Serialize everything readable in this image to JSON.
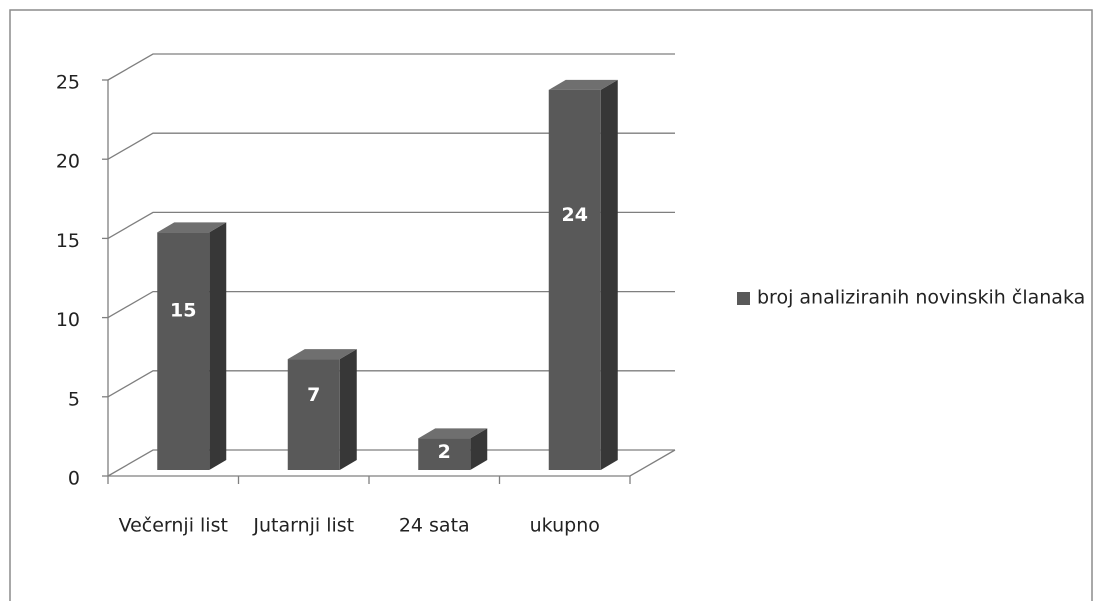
{
  "chart_data": {
    "type": "bar3d",
    "categories": [
      "Večernji list",
      "Jutarnji list",
      "24 sata",
      "ukupno"
    ],
    "series": [
      {
        "name": "broj analiziranih novinskih članaka",
        "color": "#595959",
        "values": [
          15,
          7,
          2,
          24
        ]
      }
    ],
    "ylim": [
      0,
      25
    ],
    "yticks": [
      0,
      5,
      10,
      15,
      20,
      25
    ],
    "grid": true,
    "legend": "right",
    "data_labels": true
  }
}
